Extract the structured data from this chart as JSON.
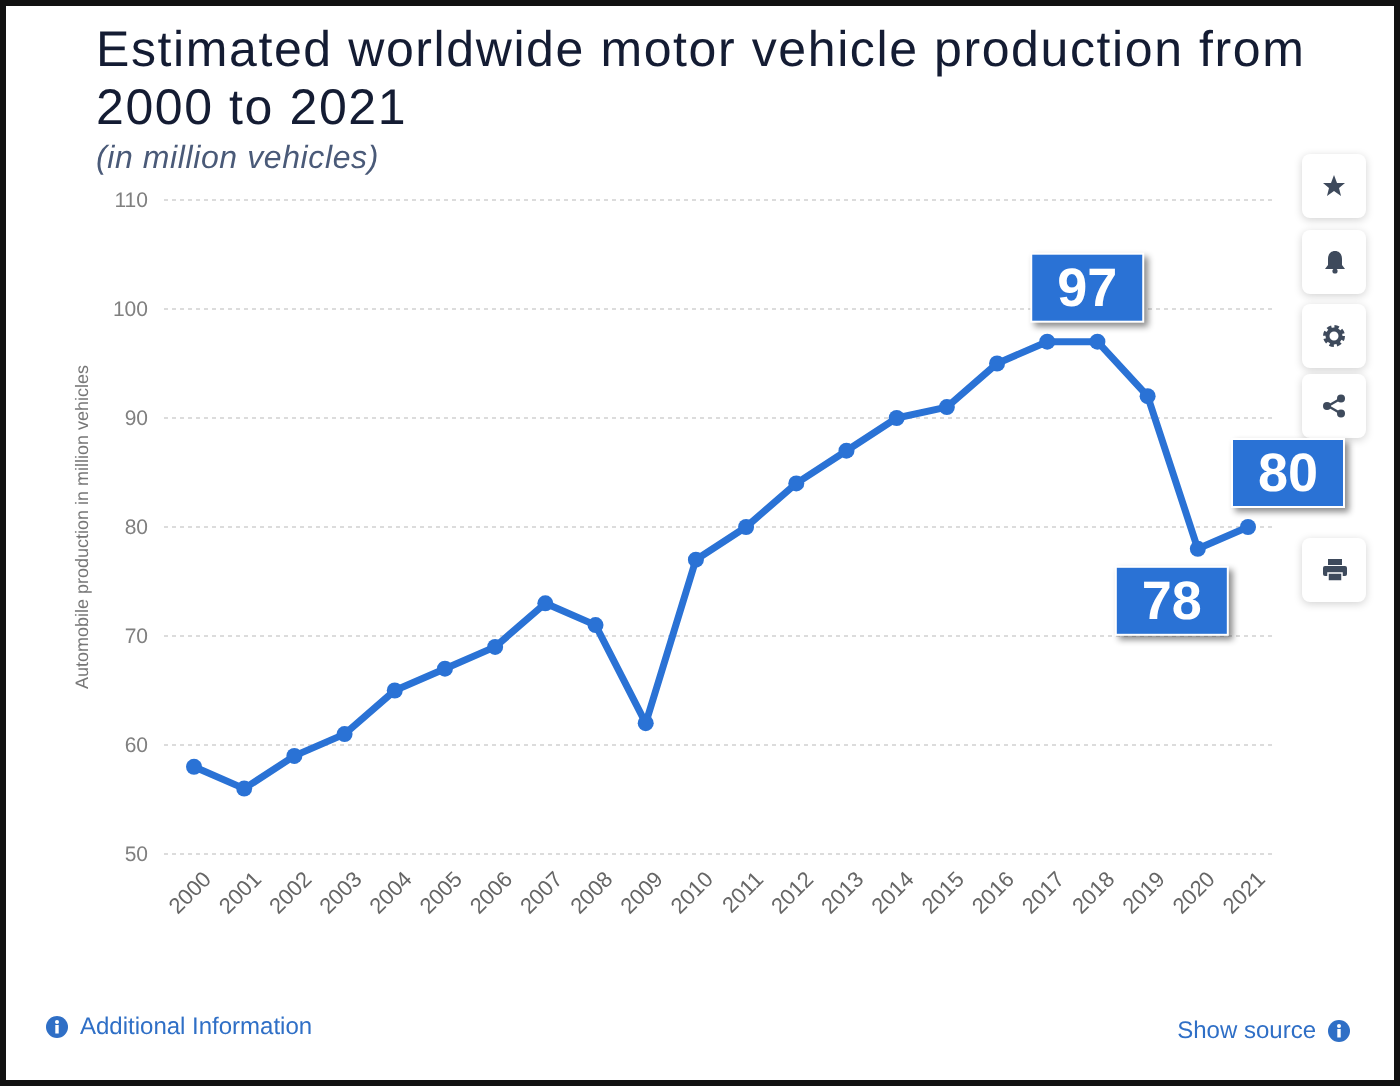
{
  "chart_data": {
    "type": "line",
    "title": "Estimated worldwide motor vehicle production from 2000 to 2021",
    "subtitle": "(in million vehicles)",
    "ylabel": "Automobile production in million vehicles",
    "categories": [
      "2000",
      "2001",
      "2002",
      "2003",
      "2004",
      "2005",
      "2006",
      "2007",
      "2008",
      "2009",
      "2010",
      "2011",
      "2012",
      "2013",
      "2014",
      "2015",
      "2016",
      "2017",
      "2018",
      "2019",
      "2020",
      "2021"
    ],
    "series": [
      {
        "color": "#2a72d5",
        "values": [
          58,
          56,
          59,
          61,
          65,
          67,
          69,
          73,
          71,
          62,
          77,
          80,
          84,
          87,
          90,
          91,
          95,
          97,
          97,
          92,
          78,
          80
        ],
        "value_labels": [
          null,
          null,
          null,
          null,
          null,
          null,
          null,
          null,
          null,
          null,
          null,
          null,
          null,
          null,
          null,
          null,
          null,
          "97",
          null,
          null,
          "78",
          "80"
        ]
      }
    ],
    "ylim": [
      50,
      110
    ],
    "yticks": [
      50,
      60,
      70,
      80,
      90,
      100,
      110
    ],
    "grid": "y",
    "marker": "circle",
    "line_style": "solid",
    "annotations": [
      "Additional Information",
      "Show source"
    ]
  }
}
